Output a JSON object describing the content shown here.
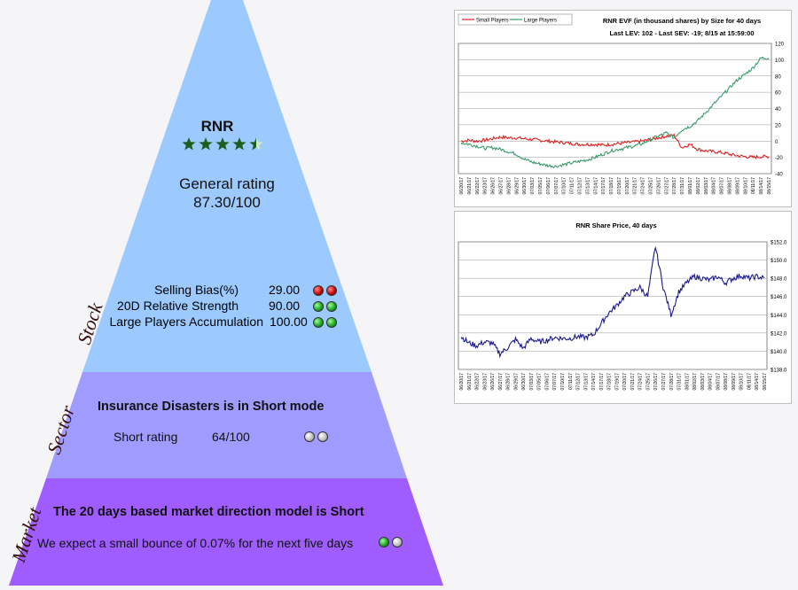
{
  "stock": {
    "ticker": "RNR",
    "stars": 4.5,
    "rating_label": "General rating",
    "rating_value": "87.30/100",
    "side_label": "Stock",
    "metrics": [
      {
        "label": "Selling Bias(%)",
        "value": "29.00",
        "dots": [
          "red",
          "red"
        ]
      },
      {
        "label": "20D Relative Strength",
        "value": "90.00",
        "dots": [
          "green",
          "green"
        ]
      },
      {
        "label": "Large Players Accumulation",
        "value": "100.00",
        "dots": [
          "green",
          "green"
        ]
      }
    ]
  },
  "sector": {
    "side_label": "Sector",
    "headline": "Insurance Disasters is in Short mode",
    "rating_label": "Short rating",
    "rating_value": "64/100",
    "dots": [
      "gray",
      "gray"
    ]
  },
  "market": {
    "side_label": "Market",
    "headline": "The 20 days based market direction model is Short",
    "expectation": "We expect a small bounce of 0.07% for the next five days",
    "dots": [
      "green",
      "gray"
    ]
  },
  "colors": {
    "stock_tier": "#9ccaff",
    "sector_tier": "#a09cff",
    "market_tier": "#9f5cff",
    "small_players": "#e02020",
    "large_players": "#3a9a6a",
    "share_price": "#1a1a8c"
  },
  "chart_data": [
    {
      "type": "line",
      "title": "RNR EVF (in thousand shares) by Size for 40 days",
      "subtitle": "Last LEV: 102 - Last SEV: -19; 8/15 at 15:59:00",
      "legend": "top-left",
      "grid": true,
      "ylim": [
        -40,
        120
      ],
      "yticks": [
        "120",
        "100",
        "80",
        "60",
        "40",
        "20",
        "0",
        "-20",
        "-40"
      ],
      "x": [
        "06/20/17",
        "06/21/17",
        "06/22/17",
        "06/23/17",
        "06/26/17",
        "06/27/17",
        "06/28/17",
        "06/29/17",
        "06/30/17",
        "07/03/17",
        "07/05/17",
        "07/06/17",
        "07/07/17",
        "07/10/17",
        "07/11/17",
        "07/12/17",
        "07/13/17",
        "07/14/17",
        "07/17/17",
        "07/18/17",
        "07/19/17",
        "07/20/17",
        "07/21/17",
        "07/24/17",
        "07/25/17",
        "07/26/17",
        "07/27/17",
        "07/28/17",
        "07/31/17",
        "08/01/17",
        "08/02/17",
        "08/03/17",
        "08/04/17",
        "08/07/17",
        "08/08/17",
        "08/09/17",
        "08/10/17",
        "08/11/17",
        "08/14/17",
        "08/15/17"
      ],
      "series": [
        {
          "name": "Small Players",
          "values": [
            0,
            1,
            0,
            1,
            3,
            5,
            4,
            4,
            3,
            2,
            1,
            0,
            -1,
            -2,
            -3,
            -4,
            -4,
            -4,
            -5,
            -4,
            -3,
            -2,
            -1,
            0,
            2,
            4,
            6,
            7,
            -8,
            -4,
            -10,
            -12,
            -13,
            -14,
            -16,
            -18,
            -19,
            -20,
            -19,
            -19
          ]
        },
        {
          "name": "Large Players",
          "values": [
            -2,
            -4,
            -6,
            -9,
            -8,
            -10,
            -13,
            -16,
            -22,
            -26,
            -28,
            -30,
            -31,
            -29,
            -27,
            -25,
            -23,
            -20,
            -16,
            -12,
            -10,
            -8,
            -6,
            -3,
            2,
            6,
            10,
            4,
            14,
            18,
            25,
            35,
            45,
            55,
            65,
            75,
            82,
            90,
            102,
            102
          ]
        }
      ]
    },
    {
      "type": "line",
      "title": "RNR Share Price, 40 days",
      "grid": true,
      "ylim": [
        138,
        152
      ],
      "yticks": [
        "$152.0",
        "$150.0",
        "$148.0",
        "$146.0",
        "$144.0",
        "$142.0",
        "$140.0",
        "$138.0"
      ],
      "x": [
        "06/20/17",
        "06/21/17",
        "06/22/17",
        "06/23/17",
        "06/26/17",
        "06/27/17",
        "06/28/17",
        "06/29/17",
        "06/30/17",
        "07/03/17",
        "07/05/17",
        "07/06/17",
        "07/07/17",
        "07/10/17",
        "07/11/17",
        "07/12/17",
        "07/13/17",
        "07/14/17",
        "07/17/17",
        "07/18/17",
        "07/19/17",
        "07/20/17",
        "07/21/17",
        "07/24/17",
        "07/25/17",
        "07/26/17",
        "07/27/17",
        "07/28/17",
        "07/31/17",
        "08/01/17",
        "08/02/17",
        "08/03/17",
        "08/04/17",
        "08/07/17",
        "08/08/17",
        "08/09/17",
        "08/10/17",
        "08/11/17",
        "08/14/17",
        "08/15/17"
      ],
      "series": [
        {
          "name": "Share Price",
          "values": [
            141.6,
            140.9,
            140.6,
            141.0,
            140.9,
            139.7,
            140.4,
            141.3,
            140.3,
            141.4,
            141.0,
            141.2,
            141.5,
            141.4,
            141.4,
            141.6,
            141.5,
            141.8,
            143.0,
            144.2,
            145.0,
            146.0,
            146.5,
            147.0,
            146.0,
            151.5,
            147.0,
            144.0,
            146.5,
            147.5,
            148.2,
            148.0,
            147.8,
            148.2,
            147.5,
            148.0,
            148.3,
            148.0,
            148.2,
            148.0
          ]
        }
      ]
    }
  ]
}
